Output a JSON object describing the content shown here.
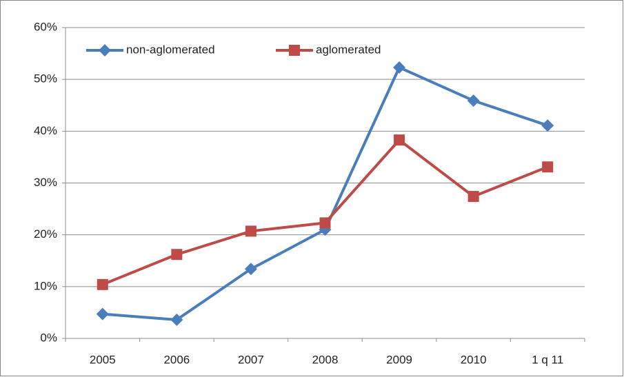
{
  "chart_data": {
    "type": "line",
    "categories": [
      "2005",
      "2006",
      "2007",
      "2008",
      "2009",
      "2010",
      "1 q 11"
    ],
    "series": [
      {
        "name": "non-aglomerated",
        "color": "#4a7ebb",
        "marker": "diamond",
        "values": [
          4.7,
          3.6,
          13.4,
          21.0,
          52.3,
          45.9,
          41.1
        ]
      },
      {
        "name": "aglomerated",
        "color": "#be4b48",
        "marker": "square",
        "values": [
          10.4,
          16.2,
          20.7,
          22.3,
          38.3,
          27.4,
          33.1
        ]
      }
    ],
    "ylim": [
      0,
      60
    ],
    "yticks": [
      {
        "value": 0,
        "label": "0%"
      },
      {
        "value": 10,
        "label": "10%"
      },
      {
        "value": 20,
        "label": "20%"
      },
      {
        "value": 30,
        "label": "30%"
      },
      {
        "value": 40,
        "label": "40%"
      },
      {
        "value": 50,
        "label": "50%"
      },
      {
        "value": 60,
        "label": "60%"
      }
    ],
    "grid": true,
    "legend": "top-left"
  }
}
